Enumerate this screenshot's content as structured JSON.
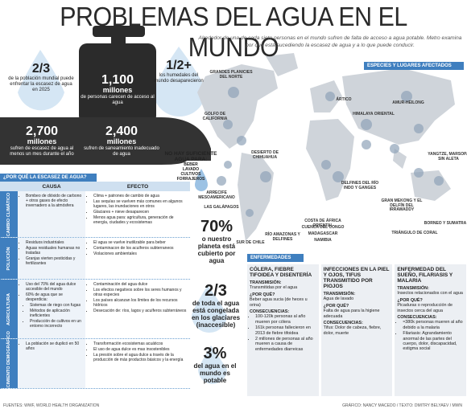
{
  "header": {
    "title": "PROBLEMAS DEL AGUA EN EL MUNDO",
    "intro": "Alrededor de una de cada siete personas en el mundo sufren de falta de acceso a agua potable. Metro examina por qué está sucediendo la escasez de agua y a lo que puede conducir."
  },
  "stats": [
    {
      "value": "2/3",
      "text": "de la población mundial puede enfrentar la escasez de agua en 2025"
    },
    {
      "value": "1,100",
      "unit": "millones",
      "text": "de personas carecen de acceso al agua"
    },
    {
      "value": "1/2+",
      "text": "los humedales del mundo desaparecieron"
    },
    {
      "value": "2,700",
      "unit": "millones",
      "text": "sufren de escasez de agua al menos un mes durante el año"
    },
    {
      "value": "2,400",
      "unit": "millones",
      "text": "sufren de saneamiento inadecuado de agua"
    },
    {
      "value": "70%",
      "text": "o nuestro planeta está cubierto por agua"
    },
    {
      "value": "2/3",
      "text": "de toda el agua está congelada en los glaciares (inaccesible)"
    },
    {
      "value": "3%",
      "text": "del agua en el mundo es potable"
    }
  ],
  "not_enough": {
    "title": "NO HAY SUFICIENTE AGUA PARA:",
    "items": [
      "BEBER",
      "LAVADO",
      "CULTIVOS",
      "FORRAJEROS"
    ]
  },
  "map": {
    "title": "ESPECIES Y LUGARES AFECTADOS",
    "labels": [
      "GRANDES PLANICIES DEL NORTE",
      "GOLFO DE CALIFORNIA",
      "ÁRTICO",
      "DESIERTO DE CHIHUAHUA",
      "ARRECIFE MESOAMERICANO",
      "LAS GALÁPAGOS",
      "SUR DE CHILE",
      "RÍO AMAZONAS Y DELFINES",
      "COSTA DE ÁFRICA ORIENTAL",
      "CUENCA DEL CONGO",
      "MADAGASCAR",
      "NAMIBIA",
      "HIMALAYA ORIENTAL",
      "AMUR-HEILONG",
      "DELFINES DEL RÍO INDO Y GANGES",
      "GRAN MEKONG Y EL DELFÍN DEL IRRAWADDY",
      "YANGTZE, MARSOPA SIN ALETA",
      "TRIÁNGULO DE CORAL",
      "BORNEO Y SUMATRA"
    ]
  },
  "why": {
    "title": "¿POR QUÉ LA ESCASEZ DE AGUA?",
    "headers": [
      "CAUSA",
      "EFECTO"
    ],
    "rows": [
      {
        "label": "CAMBIO CLIMÁTICO",
        "causes": [
          "Bombeo de dióxido de carbono + otros gases de efecto invernadero a la atmósfera"
        ],
        "effects": [
          "Clima + patrones de cambio de agua",
          "Las sequías se vuelven más comunes en algunos lugares, las inundaciones en otros",
          "Glaciares + nieve desaparecen",
          "Menos agua para: agricultura, generación de energía, ciudades y ecosistemas"
        ]
      },
      {
        "label": "POLUCIÓN",
        "causes": [
          "Residuos industriales",
          "Aguas residuales humanas no tratadas",
          "Granjas vierten pesticidas y fertilizantes"
        ],
        "effects": [
          "El agua se vuelve inutilizable para beber",
          "Contaminacon de los acuíferos subterraneos",
          "Violaciones ambientales"
        ]
      },
      {
        "label": "AGRICULTURA",
        "causes": [
          "Uso del 70% del agua dulce accesible del mundo",
          "60% de agua que se desperdicia:"
        ],
        "sub": [
          "Sistemas de riego con fugas",
          "Métodos de aplicación ineficientes",
          "Producción de cultivos en un entorno incorrecto"
        ],
        "effects": [
          "Contaminación del agua dulce",
          "Los efectos negativos sobre los seres humanos y otras especies",
          "Los países alcanzan los límites de los recursos hídricos",
          "Desecación de: ríos, lagos y acuíferos subterráneos"
        ]
      },
      {
        "label": "CRECIMIENTO DEMOGRÁFICO",
        "causes": [
          "La población se duplicó en 50 años"
        ],
        "effects": [
          "Transformación ecosistemas acuáticos",
          "El uso de agua dulce es mas insostenibles",
          "La presión sobre el agua dulce a través de la producción de más productos básicos y la energía"
        ]
      }
    ]
  },
  "diseases": {
    "title": "ENFERMEDADES",
    "columns": [
      {
        "title": "CÓLERA, FIEBRE TIFOIDEA Y DISENTERÍA",
        "sections": [
          {
            "label": "TRANSMISIÓN:",
            "text": "Transmitidas por el agua"
          },
          {
            "label": "¿POR QUÉ?",
            "text": "Beber agua sucia (de heces u orina)"
          },
          {
            "label": "CONSECUENCIAS:",
            "bullets": [
              "100-120k personas al año mueren por cólera",
              "161k personas fallecieron en 2013 de fiebre tifoidea",
              "2 millones de personas al año mueren a causa de enfermedades diarreicas"
            ]
          }
        ]
      },
      {
        "title": "INFECCIONES EN LA PIEL Y OJOS, TIFUS TRANSMITIDO POR PIOJOS",
        "sections": [
          {
            "label": "TRANSMISIÓN:",
            "text": "Agua de lavado"
          },
          {
            "label": "¿POR QUÉ?",
            "text": "Falta de agua para la higiene adecuada"
          },
          {
            "label": "CONSECUENCIAS:",
            "text": "Tifus: Dolor de cabeza, fiebre, dolor, muerte"
          }
        ]
      },
      {
        "title": "ENFERMEDAD DEL SUEÑO, FILARIASIS Y MALARIA",
        "sections": [
          {
            "label": "TRANSMISIÓN:",
            "text": "Insectos relacionados con el agua"
          },
          {
            "label": "¿POR QUÉ?",
            "text": "Picaduras o reproducción de insectos cerca del agua"
          },
          {
            "label": "CONSECUENCIAS:",
            "bullets": [
              "≈380k personas mueren al año debido a la malaria",
              "Filariasis: Agrandamiento anormal de las partes del cuerpo, dolor, discapacidad, estigma social"
            ]
          }
        ]
      }
    ]
  },
  "footer": {
    "sources": "FUENTES: WWF, WORLD HEALTH ORGANIZATION",
    "credits": "GRÁFICO: NANCY MACEDO / TEXTO: DMITRY BELYAEV / MWN"
  }
}
